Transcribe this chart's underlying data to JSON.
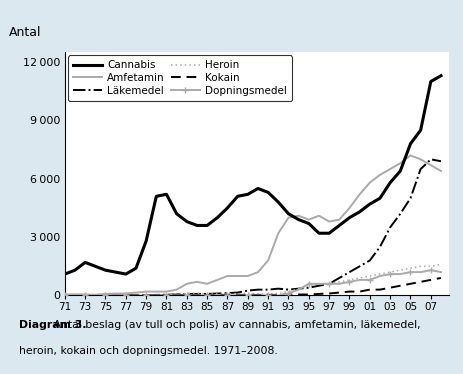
{
  "years": [
    1971,
    1972,
    1973,
    1974,
    1975,
    1976,
    1977,
    1978,
    1979,
    1980,
    1981,
    1982,
    1983,
    1984,
    1985,
    1986,
    1987,
    1988,
    1989,
    1990,
    1991,
    1992,
    1993,
    1994,
    1995,
    1996,
    1997,
    1998,
    1999,
    2000,
    2001,
    2002,
    2003,
    2004,
    2005,
    2006,
    2007,
    2008
  ],
  "cannabis": [
    1100,
    1300,
    1700,
    1500,
    1300,
    1200,
    1100,
    1400,
    2800,
    5100,
    5200,
    4200,
    3800,
    3600,
    3600,
    4000,
    4500,
    5100,
    5200,
    5500,
    5300,
    4800,
    4200,
    3900,
    3700,
    3200,
    3200,
    3600,
    4000,
    4300,
    4700,
    5000,
    5800,
    6400,
    7800,
    8500,
    11000,
    11300
  ],
  "amfetamin": [
    50,
    60,
    50,
    40,
    80,
    100,
    100,
    150,
    200,
    200,
    200,
    300,
    600,
    700,
    600,
    800,
    1000,
    1000,
    1000,
    1200,
    1800,
    3200,
    4000,
    4100,
    3900,
    4100,
    3800,
    3900,
    4500,
    5200,
    5800,
    6200,
    6500,
    6800,
    7200,
    7000,
    6700,
    6400
  ],
  "lakemedel": [
    0,
    0,
    0,
    0,
    0,
    0,
    20,
    30,
    20,
    30,
    40,
    50,
    80,
    80,
    80,
    100,
    120,
    150,
    250,
    300,
    300,
    350,
    300,
    350,
    400,
    500,
    600,
    900,
    1200,
    1500,
    1800,
    2500,
    3500,
    4200,
    5000,
    6500,
    7000,
    6900
  ],
  "heroin": [
    0,
    0,
    0,
    0,
    0,
    0,
    0,
    0,
    0,
    0,
    50,
    80,
    100,
    100,
    80,
    80,
    80,
    100,
    100,
    80,
    80,
    100,
    200,
    350,
    500,
    600,
    600,
    700,
    800,
    900,
    1000,
    1100,
    1200,
    1300,
    1400,
    1500,
    1500,
    1600
  ],
  "kokain": [
    0,
    0,
    0,
    0,
    0,
    0,
    0,
    0,
    0,
    0,
    0,
    20,
    30,
    30,
    30,
    30,
    30,
    30,
    30,
    30,
    30,
    30,
    50,
    50,
    50,
    80,
    100,
    150,
    200,
    200,
    300,
    300,
    400,
    500,
    600,
    700,
    800,
    900
  ],
  "dopningsmedel": [
    0,
    0,
    0,
    0,
    0,
    0,
    0,
    0,
    0,
    0,
    0,
    0,
    0,
    0,
    0,
    0,
    0,
    0,
    0,
    0,
    0,
    0,
    100,
    300,
    600,
    600,
    600,
    600,
    700,
    800,
    800,
    1000,
    1100,
    1100,
    1200,
    1200,
    1300,
    1200
  ],
  "bg_color": "#dce8f0",
  "plot_bg": "#ffffff",
  "ylabel": "Antal",
  "ylim_max": 12500,
  "yticks": [
    0,
    3000,
    6000,
    9000,
    12000
  ],
  "ytick_labels": [
    "0",
    "3 000",
    "6 000",
    "9 000",
    "12 000"
  ],
  "cannabis_color": "#000000",
  "amfetamin_color": "#aaaaaa",
  "lakemedel_color": "#000000",
  "heroin_color": "#aaaaaa",
  "kokain_color": "#000000",
  "dopning_color": "#aaaaaa",
  "caption_bold": "Diagram 3.",
  "caption_normal": " Antal beslag (av tull och polis) av cannabis, amfetamin, läkemedel,",
  "caption_line2": "heroin, kokain och dopningsmedel. 1971–2008."
}
